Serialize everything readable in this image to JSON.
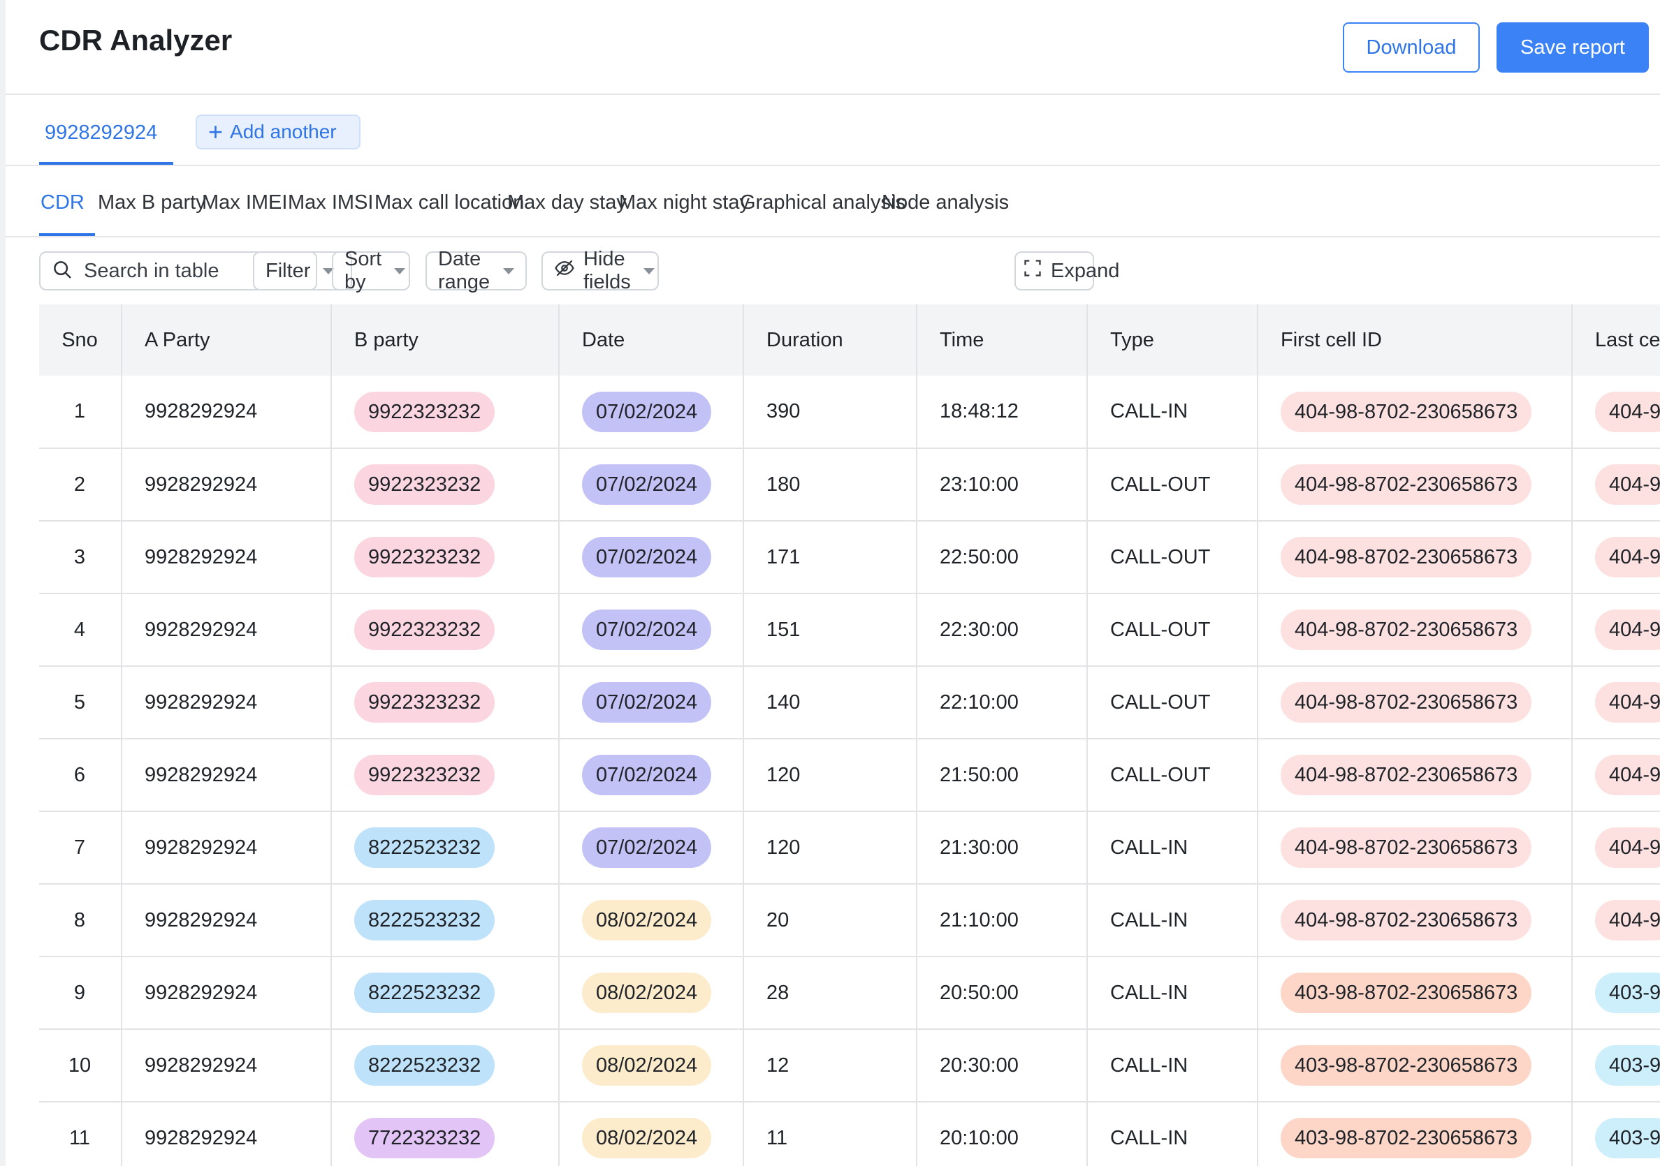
{
  "app": {
    "title": "CDR Analyzer"
  },
  "header": {
    "download_label": "Download",
    "save_label": "Save report"
  },
  "numbers": {
    "active": "9928292924",
    "add_label": "Add another"
  },
  "analysis_tabs": [
    {
      "label": "CDR",
      "active": true
    },
    {
      "label": "Max B party"
    },
    {
      "label": "Max IMEI"
    },
    {
      "label": "Max IMSI"
    },
    {
      "label": "Max call location"
    },
    {
      "label": "Max day stay"
    },
    {
      "label": "Max night stay"
    },
    {
      "label": "Graphical analysis"
    },
    {
      "label": "Node analysis"
    }
  ],
  "toolbar": {
    "search_placeholder": "Search in table",
    "filter_label": "Filter",
    "sort_label": "Sort by",
    "date_range_label": "Date range",
    "hide_fields_label": "Hide fields",
    "expand_label": "Expand"
  },
  "colors": {
    "accent": "#3b82f6",
    "b_pink": "#fbd6e0",
    "b_blue": "#bfe2fb",
    "b_purple": "#e3c4f7",
    "date_violet": "#c3c2f7",
    "date_peach": "#fdeccc",
    "cell_pink": "#fde1e1",
    "cell_salmon": "#fdd6c8",
    "cell_cyan": "#cdeefb"
  },
  "table": {
    "columns": [
      "Sno",
      "A Party",
      "B party",
      "Date",
      "Duration",
      "Time",
      "Type",
      "First cell ID",
      "Last ce"
    ],
    "rows": [
      {
        "sno": "1",
        "a": "9928292924",
        "b": "9922323232",
        "b_color": "b_pink",
        "date": "07/02/2024",
        "date_color": "date_violet",
        "duration": "390",
        "time": "18:48:12",
        "type": "CALL-IN",
        "first": "404-98-8702-230658673",
        "first_color": "cell_pink",
        "last": "404-9",
        "last_color": "cell_pink"
      },
      {
        "sno": "2",
        "a": "9928292924",
        "b": "9922323232",
        "b_color": "b_pink",
        "date": "07/02/2024",
        "date_color": "date_violet",
        "duration": "180",
        "time": "23:10:00",
        "type": "CALL-OUT",
        "first": "404-98-8702-230658673",
        "first_color": "cell_pink",
        "last": "404-9",
        "last_color": "cell_pink"
      },
      {
        "sno": "3",
        "a": "9928292924",
        "b": "9922323232",
        "b_color": "b_pink",
        "date": "07/02/2024",
        "date_color": "date_violet",
        "duration": "171",
        "time": "22:50:00",
        "type": "CALL-OUT",
        "first": "404-98-8702-230658673",
        "first_color": "cell_pink",
        "last": "404-9",
        "last_color": "cell_pink"
      },
      {
        "sno": "4",
        "a": "9928292924",
        "b": "9922323232",
        "b_color": "b_pink",
        "date": "07/02/2024",
        "date_color": "date_violet",
        "duration": "151",
        "time": "22:30:00",
        "type": "CALL-OUT",
        "first": "404-98-8702-230658673",
        "first_color": "cell_pink",
        "last": "404-9",
        "last_color": "cell_pink"
      },
      {
        "sno": "5",
        "a": "9928292924",
        "b": "9922323232",
        "b_color": "b_pink",
        "date": "07/02/2024",
        "date_color": "date_violet",
        "duration": "140",
        "time": "22:10:00",
        "type": "CALL-OUT",
        "first": "404-98-8702-230658673",
        "first_color": "cell_pink",
        "last": "404-9",
        "last_color": "cell_pink"
      },
      {
        "sno": "6",
        "a": "9928292924",
        "b": "9922323232",
        "b_color": "b_pink",
        "date": "07/02/2024",
        "date_color": "date_violet",
        "duration": "120",
        "time": "21:50:00",
        "type": "CALL-OUT",
        "first": "404-98-8702-230658673",
        "first_color": "cell_pink",
        "last": "404-9",
        "last_color": "cell_pink"
      },
      {
        "sno": "7",
        "a": "9928292924",
        "b": "8222523232",
        "b_color": "b_blue",
        "date": "07/02/2024",
        "date_color": "date_violet",
        "duration": "120",
        "time": "21:30:00",
        "type": "CALL-IN",
        "first": "404-98-8702-230658673",
        "first_color": "cell_pink",
        "last": "404-9",
        "last_color": "cell_pink"
      },
      {
        "sno": "8",
        "a": "9928292924",
        "b": "8222523232",
        "b_color": "b_blue",
        "date": "08/02/2024",
        "date_color": "date_peach",
        "duration": "20",
        "time": "21:10:00",
        "type": "CALL-IN",
        "first": "404-98-8702-230658673",
        "first_color": "cell_pink",
        "last": "404-9",
        "last_color": "cell_pink"
      },
      {
        "sno": "9",
        "a": "9928292924",
        "b": "8222523232",
        "b_color": "b_blue",
        "date": "08/02/2024",
        "date_color": "date_peach",
        "duration": "28",
        "time": "20:50:00",
        "type": "CALL-IN",
        "first": "403-98-8702-230658673",
        "first_color": "cell_salmon",
        "last": "403-9",
        "last_color": "cell_cyan"
      },
      {
        "sno": "10",
        "a": "9928292924",
        "b": "8222523232",
        "b_color": "b_blue",
        "date": "08/02/2024",
        "date_color": "date_peach",
        "duration": "12",
        "time": "20:30:00",
        "type": "CALL-IN",
        "first": "403-98-8702-230658673",
        "first_color": "cell_salmon",
        "last": "403-9",
        "last_color": "cell_cyan"
      },
      {
        "sno": "11",
        "a": "9928292924",
        "b": "7722323232",
        "b_color": "b_purple",
        "date": "08/02/2024",
        "date_color": "date_peach",
        "duration": "11",
        "time": "20:10:00",
        "type": "CALL-IN",
        "first": "403-98-8702-230658673",
        "first_color": "cell_salmon",
        "last": "403-9",
        "last_color": "cell_cyan"
      }
    ]
  }
}
